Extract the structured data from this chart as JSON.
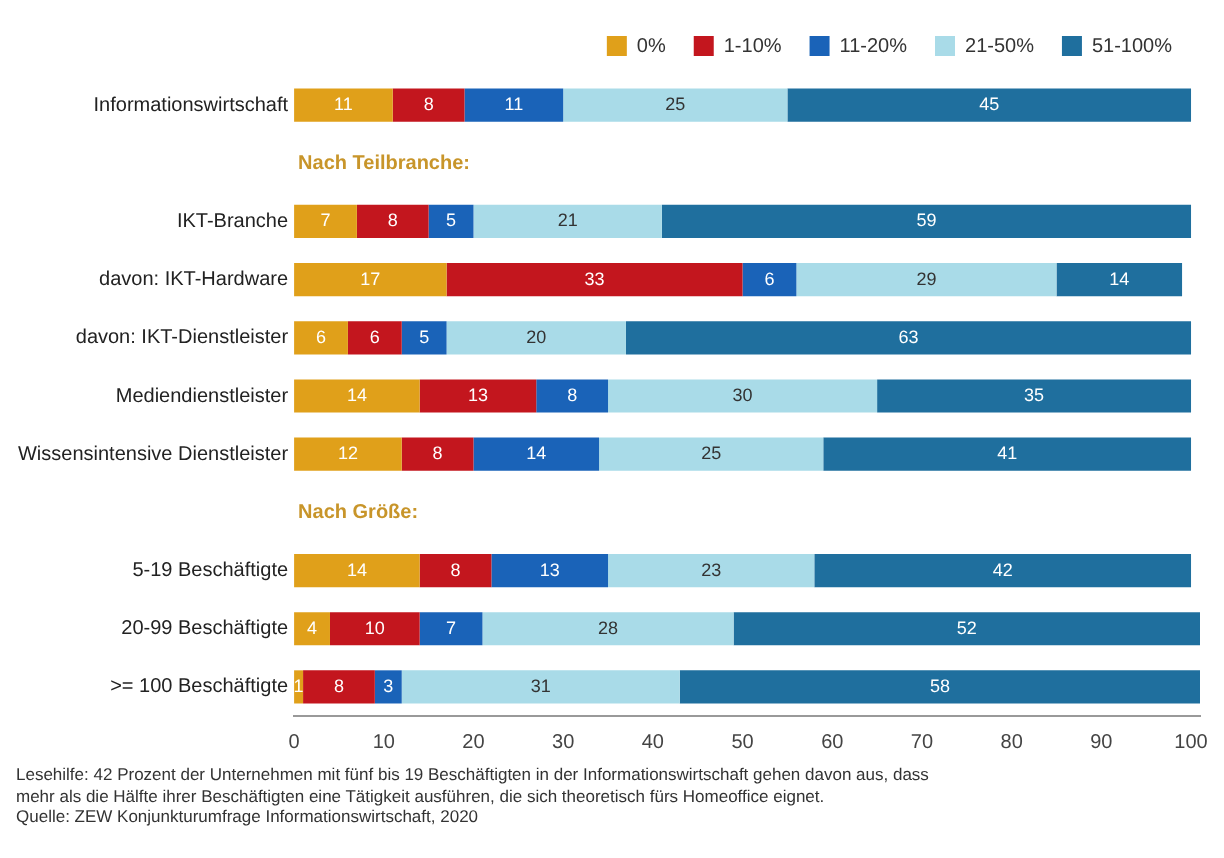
{
  "chart_data": {
    "type": "bar",
    "orientation": "horizontal",
    "stacked": true,
    "categories": [
      "Informationswirtschaft",
      null,
      "IKT-Branche",
      "davon: IKT-Hardware",
      "davon: IKT-Dienstleister",
      "Mediendienstleister",
      "Wissensintensive Dienstleister",
      null,
      "5-19 Beschäftigte",
      "20-99 Beschäftigte",
      ">= 100 Beschäftigte"
    ],
    "series": [
      {
        "name": "0%",
        "color": "#e0a01a",
        "values": [
          11,
          null,
          7,
          17,
          6,
          14,
          12,
          null,
          14,
          4,
          1
        ]
      },
      {
        "name": "1-10%",
        "color": "#c3161e",
        "values": [
          8,
          null,
          8,
          33,
          6,
          13,
          8,
          null,
          8,
          10,
          8
        ]
      },
      {
        "name": "11-20%",
        "color": "#1a63b8",
        "values": [
          11,
          null,
          5,
          6,
          5,
          8,
          14,
          null,
          13,
          7,
          3
        ]
      },
      {
        "name": "21-50%",
        "color": "#a9dbe8",
        "values": [
          25,
          null,
          21,
          29,
          20,
          30,
          25,
          null,
          23,
          28,
          31
        ]
      },
      {
        "name": "51-100%",
        "color": "#1f6f9e",
        "values": [
          45,
          null,
          59,
          14,
          63,
          35,
          41,
          null,
          42,
          52,
          58
        ]
      }
    ],
    "xlim": [
      0,
      101
    ],
    "xticks": [
      0,
      10,
      20,
      30,
      40,
      50,
      60,
      70,
      80,
      90,
      100
    ],
    "data_labels": true,
    "legend": "top right",
    "grid": false,
    "annotations": [
      "Nach Teilbranche:",
      "Nach Größe:",
      "Lesehilfe: 42 Prozent der Unternehmen mit fünf bis 19 Beschäftigten in der Informationswirtschaft gehen davon aus, dass mehr als die Hälfte ihrer Beschäftigten eine Tätigkeit ausführen, die sich theoretisch fürs Homeoffice eignet.",
      "Quelle: ZEW Konjunkturumfrage Informationswirtschaft, 2020"
    ]
  }
}
